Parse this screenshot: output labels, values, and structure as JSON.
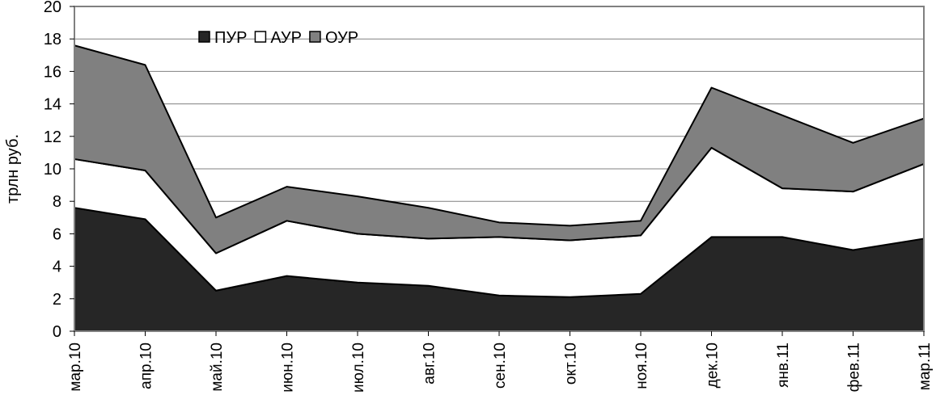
{
  "chart_data": {
    "type": "area",
    "stacked": true,
    "ylabel": "трлн руб.",
    "ylim": [
      0,
      20
    ],
    "yticks": [
      0,
      2,
      4,
      6,
      8,
      10,
      12,
      14,
      16,
      18,
      20
    ],
    "grid": true,
    "legend_position": "top-left",
    "categories": [
      "мар.10",
      "апр.10",
      "май.10",
      "июн.10",
      "июл.10",
      "авг.10",
      "сен.10",
      "окт.10",
      "ноя.10",
      "дек.10",
      "янв.11",
      "фев.11",
      "мар.11"
    ],
    "series": [
      {
        "name": "ПУР",
        "color": "#262626",
        "values": [
          7.6,
          6.9,
          2.5,
          3.4,
          3.0,
          2.8,
          2.2,
          2.1,
          2.3,
          5.8,
          5.8,
          5.0,
          5.7
        ]
      },
      {
        "name": "АУР",
        "color": "#ffffff",
        "values": [
          3.0,
          3.0,
          2.3,
          3.4,
          3.0,
          2.9,
          3.6,
          3.5,
          3.6,
          5.5,
          3.0,
          3.6,
          4.6
        ]
      },
      {
        "name": "ОУР",
        "color": "#808080",
        "values": [
          7.0,
          6.5,
          2.2,
          2.1,
          2.3,
          1.9,
          0.9,
          0.9,
          0.9,
          3.7,
          4.5,
          3.0,
          2.8
        ]
      }
    ]
  }
}
